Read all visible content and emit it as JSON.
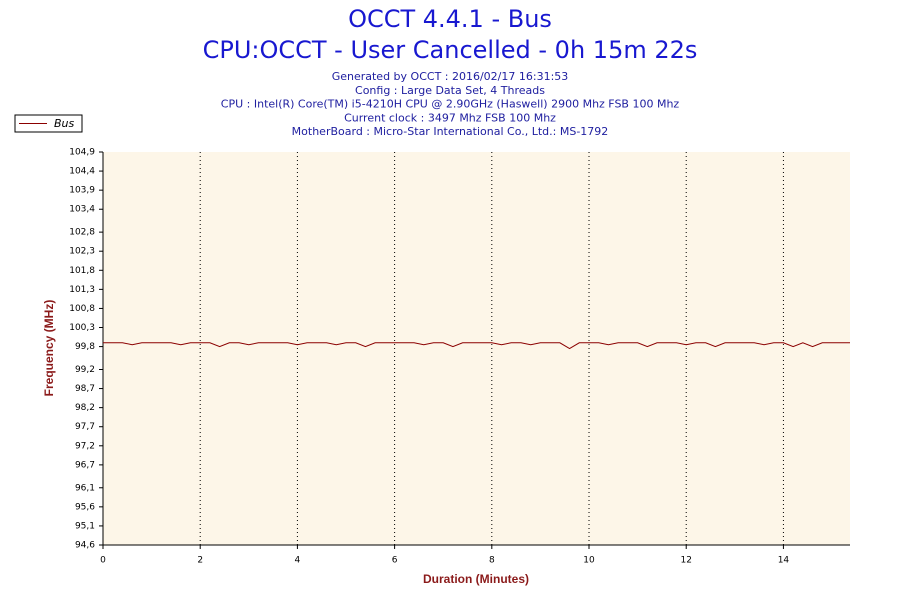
{
  "chart_data": {
    "type": "line",
    "title": "OCCT 4.4.1 - Bus",
    "subtitle": "CPU:OCCT - User Cancelled - 0h 15m 22s",
    "annotations": [
      "Generated by OCCT : 2016/02/17 16:31:53",
      "Config : Large Data Set, 4 Threads",
      "CPU : Intel(R) Core(TM) i5-4210H CPU @ 2.90GHz (Haswell) 2900 Mhz FSB 100 Mhz",
      "Current clock : 3497 Mhz FSB 100 Mhz",
      "MotherBoard : Micro-Star International Co., Ltd.: MS-1792"
    ],
    "x_label": "Duration (Minutes)",
    "y_label": "Frequency (MHz)",
    "legend": "top-left",
    "grid": true,
    "xlim": [
      0,
      15.37
    ],
    "xticks": [
      0,
      2,
      4,
      6,
      8,
      10,
      12,
      14
    ],
    "ylim": [
      94.6,
      104.9
    ],
    "yticks": [
      {
        "value": 94.6,
        "label": "94,6"
      },
      {
        "value": 95.1,
        "label": "95,1"
      },
      {
        "value": 95.6,
        "label": "95,6"
      },
      {
        "value": 96.1,
        "label": "96,1"
      },
      {
        "value": 96.7,
        "label": "96,7"
      },
      {
        "value": 97.2,
        "label": "97,2"
      },
      {
        "value": 97.7,
        "label": "97,7"
      },
      {
        "value": 98.2,
        "label": "98,2"
      },
      {
        "value": 98.7,
        "label": "98,7"
      },
      {
        "value": 99.2,
        "label": "99,2"
      },
      {
        "value": 99.8,
        "label": "99,8"
      },
      {
        "value": 100.3,
        "label": "100,3"
      },
      {
        "value": 100.8,
        "label": "100,8"
      },
      {
        "value": 101.3,
        "label": "101,3"
      },
      {
        "value": 101.8,
        "label": "101,8"
      },
      {
        "value": 102.3,
        "label": "102,3"
      },
      {
        "value": 102.8,
        "label": "102,8"
      },
      {
        "value": 103.4,
        "label": "103,4"
      },
      {
        "value": 103.9,
        "label": "103,9"
      },
      {
        "value": 104.4,
        "label": "104,4"
      },
      {
        "value": 104.9,
        "label": "104,9"
      }
    ],
    "x": [
      0,
      0.2,
      0.4,
      0.6,
      0.8,
      1,
      1.2,
      1.4,
      1.6,
      1.8,
      2,
      2.2,
      2.4,
      2.6,
      2.8,
      3,
      3.2,
      3.4,
      3.6,
      3.8,
      4,
      4.2,
      4.4,
      4.6,
      4.8,
      5,
      5.2,
      5.4,
      5.6,
      5.8,
      6,
      6.2,
      6.4,
      6.6,
      6.8,
      7,
      7.2,
      7.4,
      7.6,
      7.8,
      8,
      8.2,
      8.4,
      8.6,
      8.8,
      9,
      9.2,
      9.4,
      9.6,
      9.8,
      10,
      10.2,
      10.4,
      10.6,
      10.8,
      11,
      11.2,
      11.4,
      11.6,
      11.8,
      12,
      12.2,
      12.4,
      12.6,
      12.8,
      13,
      13.2,
      13.4,
      13.6,
      13.8,
      14,
      14.2,
      14.4,
      14.6,
      14.8,
      15,
      15.2,
      15.37
    ],
    "series": [
      {
        "name": "Bus",
        "color": "#8b0000",
        "values": [
          99.9,
          99.9,
          99.9,
          99.85,
          99.9,
          99.9,
          99.9,
          99.9,
          99.85,
          99.9,
          99.9,
          99.9,
          99.8,
          99.9,
          99.9,
          99.85,
          99.9,
          99.9,
          99.9,
          99.9,
          99.85,
          99.9,
          99.9,
          99.9,
          99.85,
          99.9,
          99.9,
          99.8,
          99.9,
          99.9,
          99.9,
          99.9,
          99.9,
          99.85,
          99.9,
          99.9,
          99.8,
          99.9,
          99.9,
          99.9,
          99.9,
          99.85,
          99.9,
          99.9,
          99.85,
          99.9,
          99.9,
          99.9,
          99.75,
          99.9,
          99.9,
          99.9,
          99.85,
          99.9,
          99.9,
          99.9,
          99.8,
          99.9,
          99.9,
          99.9,
          99.85,
          99.9,
          99.9,
          99.8,
          99.9,
          99.9,
          99.9,
          99.9,
          99.85,
          99.9,
          99.9,
          99.8,
          99.9,
          99.8,
          99.9,
          99.9,
          99.9,
          99.9
        ]
      }
    ]
  }
}
